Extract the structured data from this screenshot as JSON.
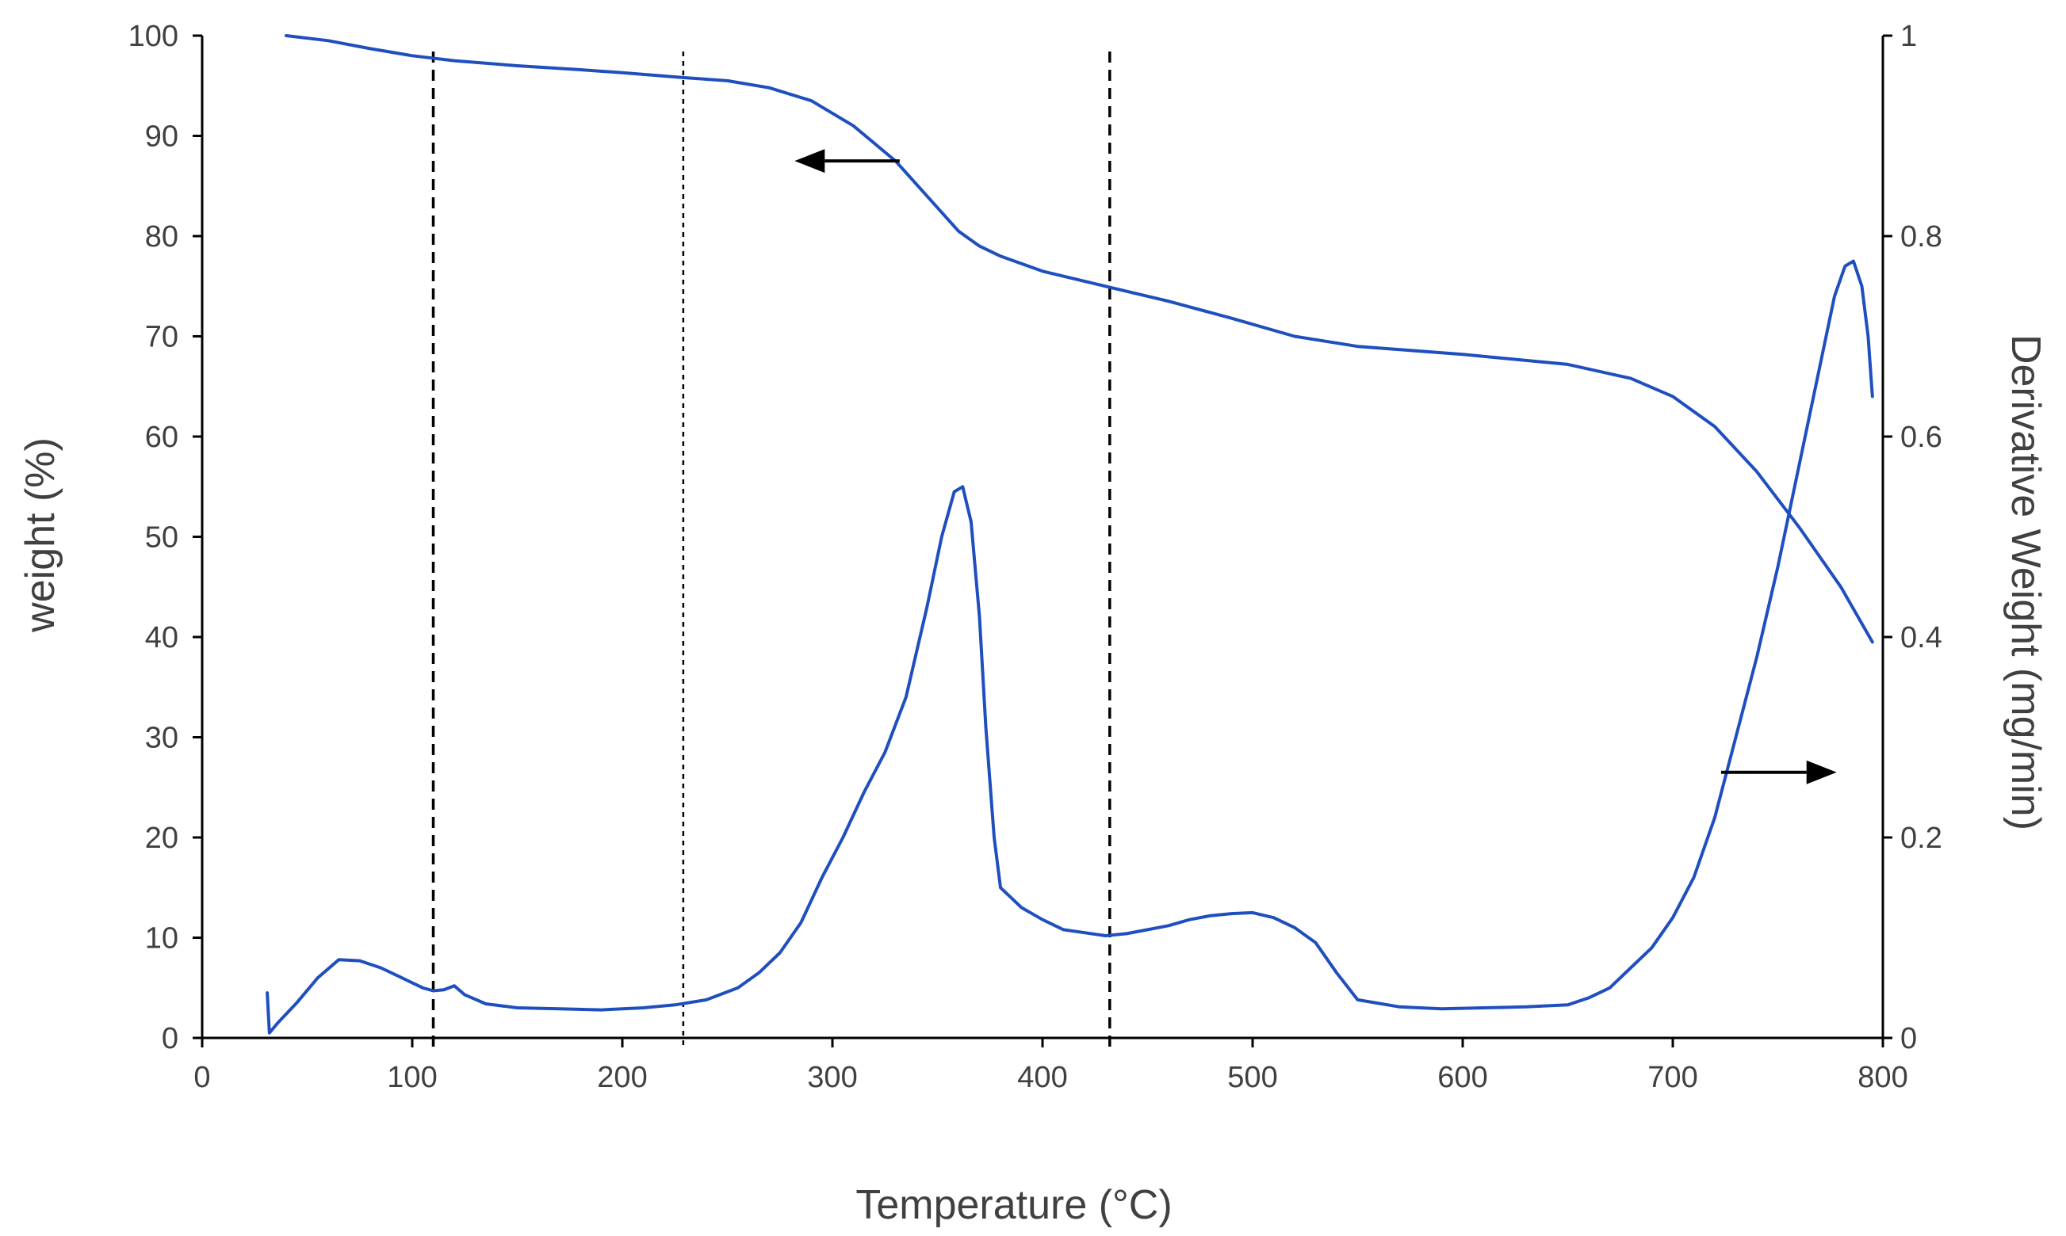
{
  "chart_data": {
    "type": "line",
    "title": "",
    "xlabel": "Temperature (°C)",
    "ylabel": "weight (%)",
    "y2label": "Derivative Weight (mg/min)",
    "xlim": [
      0,
      800
    ],
    "ylim": [
      0,
      100
    ],
    "y2lim": [
      0,
      1
    ],
    "grid": false,
    "x_ticks": [
      "0",
      "100",
      "200",
      "300",
      "400",
      "500",
      "600",
      "700",
      "800"
    ],
    "y_ticks": [
      "0",
      "10",
      "20",
      "30",
      "40",
      "50",
      "60",
      "70",
      "80",
      "90",
      "100"
    ],
    "y2_ticks": [
      "0",
      "0.2",
      "0.4",
      "0.6",
      "0.8",
      "1"
    ],
    "series": [
      {
        "name": "weight",
        "axis": "left",
        "color": "#1f4fbf",
        "x": [
          40,
          60,
          80,
          100,
          120,
          150,
          180,
          200,
          230,
          250,
          270,
          290,
          310,
          330,
          345,
          360,
          370,
          380,
          400,
          430,
          460,
          490,
          520,
          550,
          600,
          650,
          680,
          700,
          720,
          740,
          760,
          780,
          795
        ],
        "y": [
          100,
          99.5,
          98.7,
          98,
          97.5,
          97,
          96.6,
          96.3,
          95.8,
          95.5,
          94.8,
          93.5,
          91,
          87.5,
          84,
          80.5,
          79,
          78,
          76.5,
          75,
          73.5,
          71.8,
          70,
          69,
          68.2,
          67.2,
          65.8,
          64,
          61,
          56.5,
          51,
          45,
          39.5
        ]
      },
      {
        "name": "derivative weight",
        "axis": "right",
        "color": "#1f4fbf",
        "x": [
          31,
          32,
          36,
          45,
          55,
          65,
          75,
          85,
          95,
          105,
          110,
          115,
          120,
          125,
          135,
          150,
          170,
          190,
          210,
          225,
          240,
          255,
          265,
          275,
          285,
          295,
          305,
          315,
          325,
          335,
          345,
          352,
          358,
          362,
          366,
          370,
          373,
          377,
          380,
          390,
          400,
          410,
          420,
          430,
          440,
          450,
          460,
          470,
          480,
          490,
          500,
          510,
          520,
          530,
          540,
          550,
          570,
          590,
          610,
          630,
          650,
          660,
          670,
          680,
          690,
          700,
          710,
          720,
          730,
          740,
          750,
          760,
          770,
          777,
          782,
          786,
          790,
          793,
          795
        ],
        "y": [
          0.045,
          0.005,
          0.015,
          0.035,
          0.06,
          0.078,
          0.077,
          0.07,
          0.06,
          0.05,
          0.047,
          0.048,
          0.052,
          0.043,
          0.034,
          0.03,
          0.029,
          0.028,
          0.03,
          0.033,
          0.038,
          0.05,
          0.065,
          0.085,
          0.115,
          0.16,
          0.2,
          0.245,
          0.285,
          0.34,
          0.43,
          0.5,
          0.545,
          0.55,
          0.515,
          0.42,
          0.31,
          0.2,
          0.15,
          0.13,
          0.118,
          0.108,
          0.105,
          0.102,
          0.104,
          0.108,
          0.112,
          0.118,
          0.122,
          0.124,
          0.125,
          0.12,
          0.11,
          0.095,
          0.065,
          0.038,
          0.031,
          0.029,
          0.03,
          0.031,
          0.033,
          0.04,
          0.05,
          0.07,
          0.09,
          0.12,
          0.16,
          0.22,
          0.3,
          0.38,
          0.47,
          0.57,
          0.67,
          0.74,
          0.77,
          0.775,
          0.75,
          0.7,
          0.64
        ]
      }
    ],
    "vertical_markers": [
      {
        "x": 110,
        "style": "dashed"
      },
      {
        "x": 229,
        "style": "dotted"
      },
      {
        "x": 432,
        "style": "dashed"
      }
    ],
    "annotations": [
      {
        "type": "arrow",
        "direction": "left",
        "axis": "left",
        "x_from": 332,
        "x_to": 282,
        "y": 87.5
      },
      {
        "type": "arrow",
        "direction": "right",
        "axis": "left",
        "x_from": 723,
        "x_to": 778,
        "y": 26.5
      }
    ]
  },
  "colors": {
    "line": "#1f4fbf",
    "axis": "#000000",
    "text": "#404040",
    "arrow": "#000000"
  }
}
